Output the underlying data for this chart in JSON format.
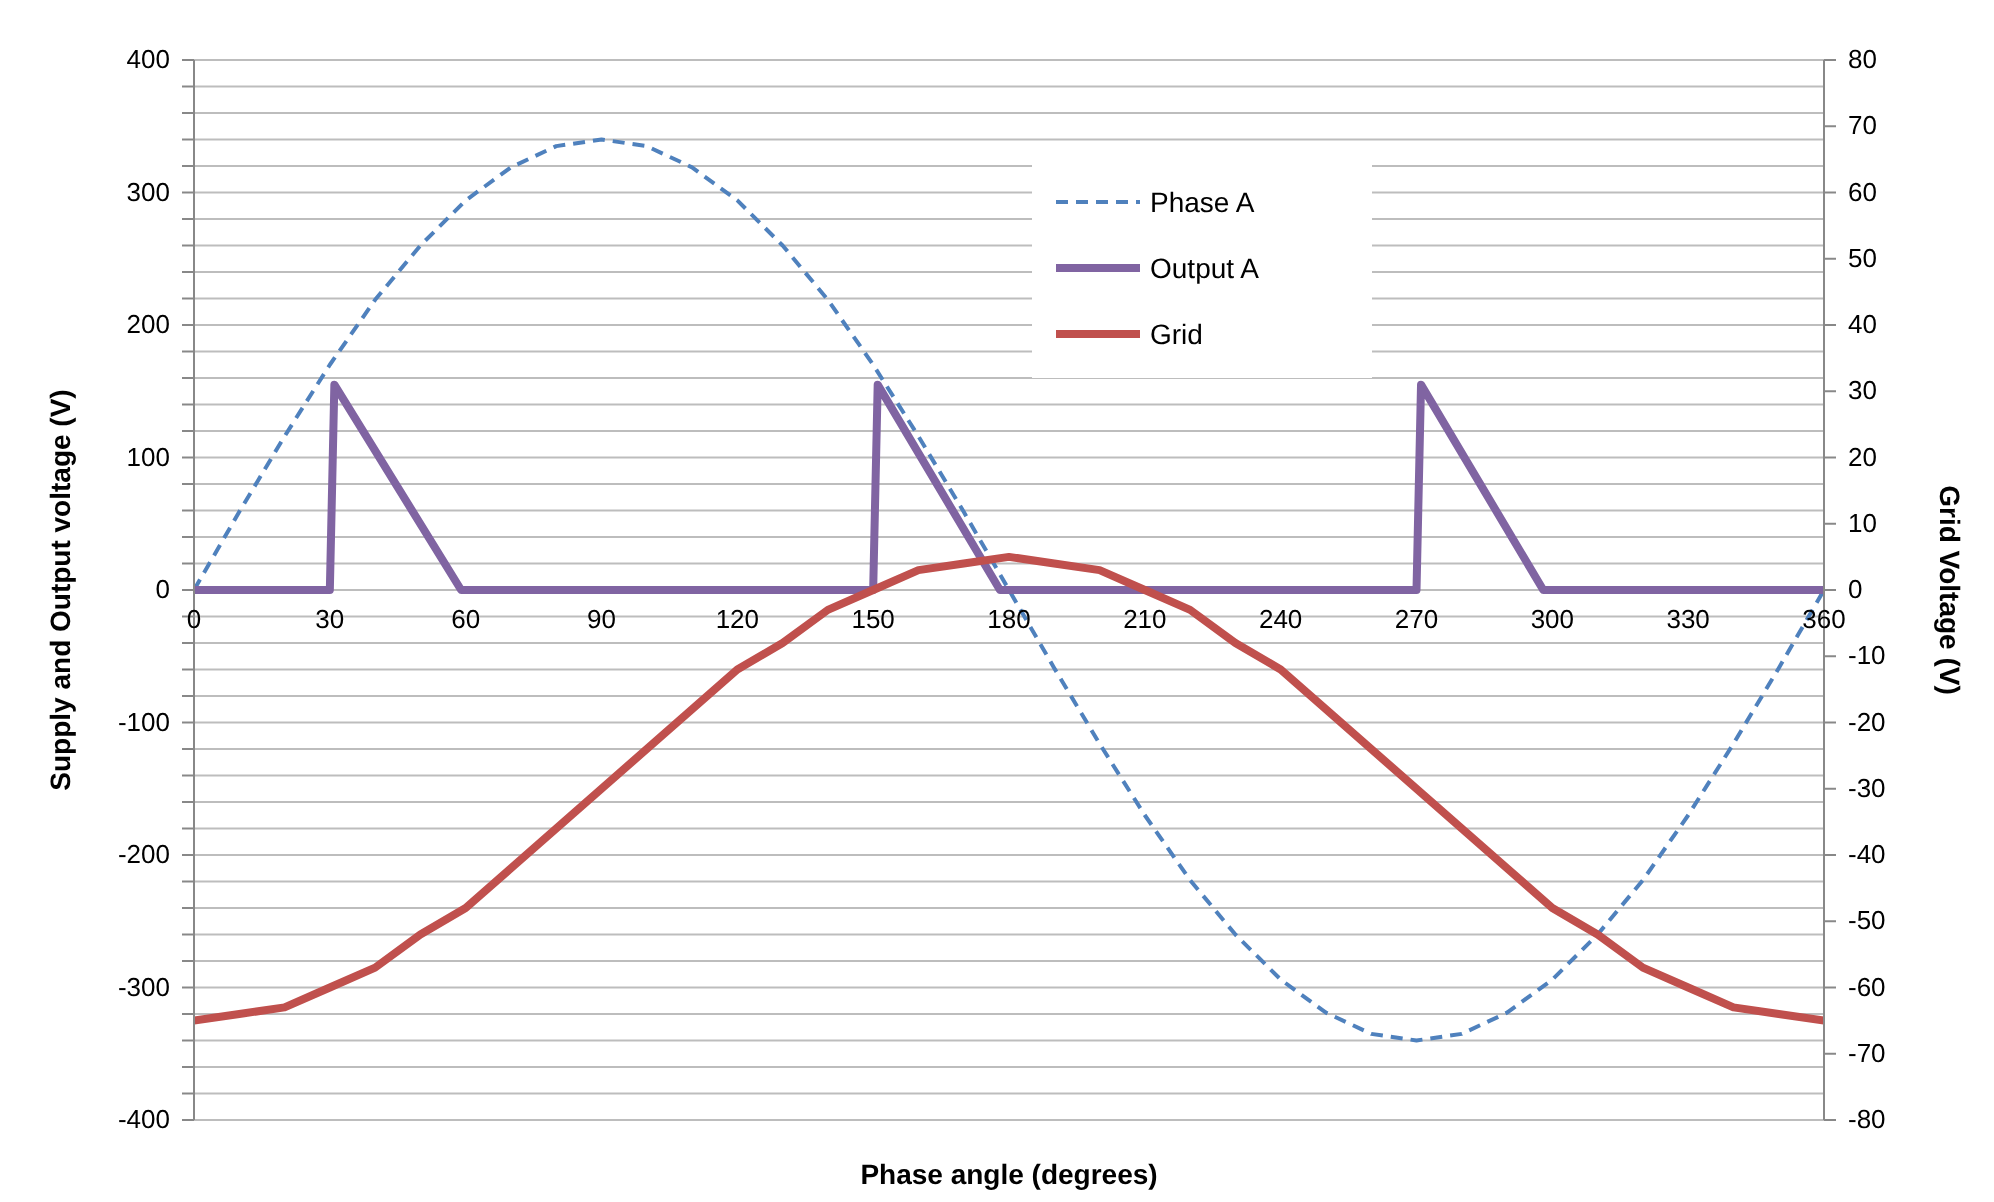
{
  "chart_data": {
    "type": "line",
    "xlabel": "Phase angle (degrees)",
    "ylabel": "Supply and Output voltage (V)",
    "y2label": "Grid Voltage (V)",
    "xlim": [
      0,
      360
    ],
    "xticks": [
      0,
      30,
      60,
      90,
      120,
      150,
      180,
      210,
      240,
      270,
      300,
      330,
      360
    ],
    "ylim": [
      -400,
      400
    ],
    "yticks": [
      -400,
      {
        "value": -380,
        "label": null
      },
      {
        "value": -360,
        "label": null
      },
      {
        "value": -340,
        "label": null
      },
      {
        "value": -320,
        "label": null
      },
      -300,
      {
        "value": -280,
        "label": null
      },
      {
        "value": -260,
        "label": null
      },
      {
        "value": -240,
        "label": null
      },
      {
        "value": -220,
        "label": null
      },
      -200,
      {
        "value": -180,
        "label": null
      },
      {
        "value": -160,
        "label": null
      },
      {
        "value": -140,
        "label": null
      },
      {
        "value": -120,
        "label": null
      },
      -100,
      {
        "value": -80,
        "label": null
      },
      {
        "value": -60,
        "label": null
      },
      {
        "value": -40,
        "label": null
      },
      {
        "value": -20,
        "label": null
      },
      0,
      {
        "value": 20,
        "label": null
      },
      {
        "value": 40,
        "label": null
      },
      {
        "value": 60,
        "label": null
      },
      {
        "value": 80,
        "label": null
      },
      100,
      {
        "value": 120,
        "label": null
      },
      {
        "value": 140,
        "label": null
      },
      {
        "value": 160,
        "label": null
      },
      {
        "value": 180,
        "label": null
      },
      200,
      {
        "value": 220,
        "label": null
      },
      {
        "value": 240,
        "label": null
      },
      {
        "value": 260,
        "label": null
      },
      {
        "value": 280,
        "label": null
      },
      300,
      {
        "value": 320,
        "label": null
      },
      {
        "value": 340,
        "label": null
      },
      {
        "value": 360,
        "label": null
      },
      {
        "value": 380,
        "label": null
      },
      400
    ],
    "y2lim": [
      -80,
      80
    ],
    "y2ticks": [
      -80,
      -70,
      -60,
      -50,
      -40,
      -30,
      -20,
      -10,
      0,
      10,
      20,
      30,
      40,
      50,
      60,
      70,
      80
    ],
    "grid": "y",
    "legend": "top",
    "marker": "none",
    "series": [
      {
        "name": "Phase A",
        "color": "#4f81bd",
        "line_style": "dashed",
        "x": [
          0,
          10,
          20,
          30,
          40,
          50,
          60,
          70,
          80,
          90,
          100,
          110,
          120,
          130,
          140,
          150,
          160,
          170,
          180,
          190,
          200,
          210,
          220,
          230,
          240,
          250,
          260,
          270,
          280,
          290,
          300,
          310,
          320,
          330,
          340,
          350,
          360
        ],
        "values": [
          0,
          59,
          116,
          170,
          219,
          260,
          294,
          319,
          335,
          340,
          335,
          319,
          294,
          260,
          219,
          170,
          116,
          59,
          0,
          -59,
          -116,
          -170,
          -219,
          -260,
          -294,
          -319,
          -335,
          -340,
          -335,
          -319,
          -294,
          -260,
          -219,
          -170,
          -116,
          -59,
          0
        ]
      },
      {
        "name": "Output A",
        "color": "#8064a2",
        "line_style": "solid",
        "x": [
          0,
          30,
          31,
          59,
          150,
          151,
          178,
          270,
          271,
          298,
          360
        ],
        "values": [
          0,
          0,
          155,
          0,
          0,
          155,
          0,
          0,
          155,
          0,
          0
        ]
      },
      {
        "name": "Grid",
        "color": "#c0504d",
        "line_style": "solid",
        "axis": "y2",
        "x": [
          0,
          10,
          20,
          30,
          40,
          50,
          60,
          70,
          80,
          90,
          100,
          110,
          120,
          130,
          140,
          150,
          160,
          170,
          180,
          190,
          200,
          210,
          220,
          230,
          240,
          250,
          260,
          270,
          280,
          290,
          300,
          310,
          320,
          330,
          340,
          350,
          360
        ],
        "values": [
          -65,
          -64,
          -63,
          -60,
          -57,
          -52,
          -48,
          -42,
          -36,
          -30,
          -24,
          -18,
          -12,
          -8,
          -3,
          0,
          3,
          4,
          5,
          4,
          3,
          0,
          -3,
          -8,
          -12,
          -18,
          -24,
          -30,
          -36,
          -42,
          -48,
          -52,
          -57,
          -60,
          -63,
          -64,
          -65
        ]
      }
    ]
  }
}
